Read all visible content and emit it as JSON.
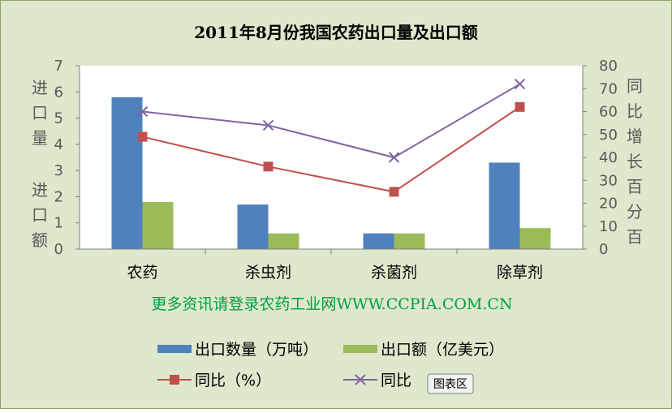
{
  "chart_data": {
    "type": "bar",
    "title": "2011年8月份我国农药出口量及出口额",
    "categories": [
      "农药",
      "杀虫剂",
      "杀菌剂",
      "除草剂"
    ],
    "y_left": {
      "label_top": "进口量",
      "label_bottom": "进口额",
      "ylim": [
        0,
        7
      ],
      "ticks": [
        "0",
        "1",
        "2",
        "3",
        "4",
        "5",
        "6",
        "7"
      ]
    },
    "y_right": {
      "label": "同比增长百分百",
      "ylim": [
        0,
        80
      ],
      "ticks": [
        "0",
        "10",
        "20",
        "30",
        "40",
        "50",
        "60",
        "70",
        "80"
      ]
    },
    "series": [
      {
        "name": "出口数量（万吨）",
        "type": "bar",
        "axis": "left",
        "color": "#4f81bd",
        "values": [
          5.8,
          1.7,
          0.6,
          3.3
        ]
      },
      {
        "name": "出口额（亿美元）",
        "type": "bar",
        "axis": "left",
        "color": "#9bbb59",
        "values": [
          1.8,
          0.6,
          0.6,
          0.8
        ]
      },
      {
        "name": "同比（%）",
        "type": "line",
        "axis": "right",
        "marker": "square",
        "color": "#c0504d",
        "values": [
          49,
          36,
          25,
          62
        ]
      },
      {
        "name": "同比",
        "type": "line",
        "axis": "right",
        "marker": "x",
        "color": "#8064a2",
        "values": [
          60,
          54,
          40,
          72
        ]
      }
    ],
    "footer_note": "更多资讯请登录农药工业网WWW.CCPIA.COM.CN",
    "tag": "图表区",
    "legend_position": "bottom",
    "grid": false
  }
}
